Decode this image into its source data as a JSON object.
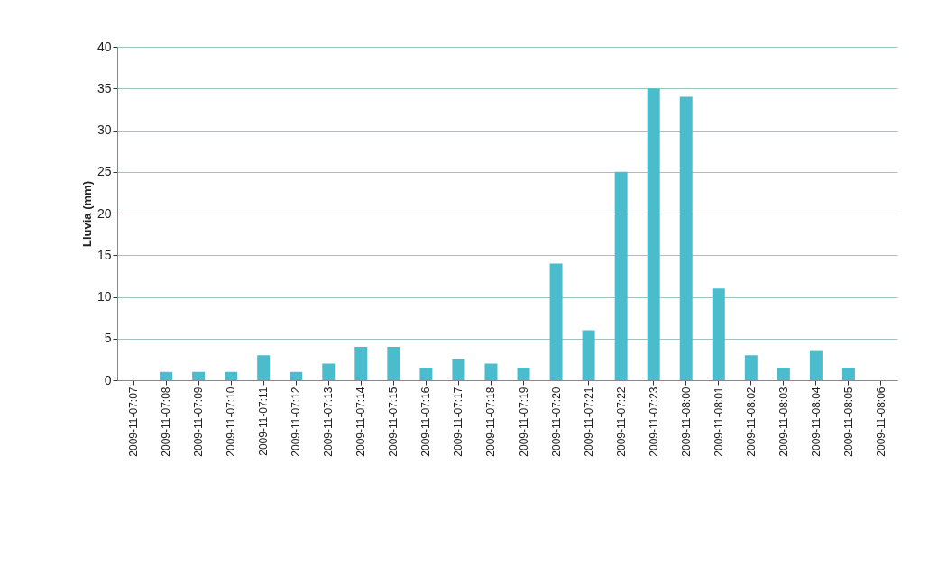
{
  "chart_data": {
    "type": "bar",
    "ylabel": "Lluvia (mm)",
    "categories": [
      "2009-11-07:07",
      "2009-11-07:08",
      "2009-11-07:09",
      "2009-11-07:10",
      "2009-11-07:11",
      "2009-11-07:12",
      "2009-11-07:13",
      "2009-11-07:14",
      "2009-11-07:15",
      "2009-11-07:16",
      "2009-11-07:17",
      "2009-11-07:18",
      "2009-11-07:19",
      "2009-11-07:20",
      "2009-11-07:21",
      "2009-11-07:22",
      "2009-11-07:23",
      "2009-11-08:00",
      "2009-11-08:01",
      "2009-11-08:02",
      "2009-11-08:03",
      "2009-11-08:04",
      "2009-11-08:05",
      "2009-11-08:06"
    ],
    "values": [
      0,
      1,
      1,
      1,
      3,
      1,
      2,
      4,
      4,
      1.5,
      2.5,
      2,
      1.5,
      14,
      6,
      25,
      35,
      34,
      11,
      3,
      1.5,
      3.5,
      1.5,
      0
    ],
    "color": "#4bbccc",
    "ylim": [
      0,
      40
    ],
    "yticks": [
      0,
      5,
      10,
      15,
      20,
      25,
      30,
      35,
      40
    ],
    "grid": "y"
  }
}
